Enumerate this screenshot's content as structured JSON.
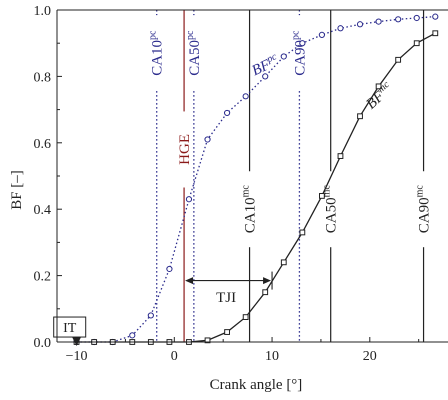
{
  "chart_data": {
    "type": "line",
    "xlabel": "Crank angle [°]",
    "ylabel": "BF [–]",
    "xlim": [
      -12,
      28
    ],
    "ylim": [
      0,
      1
    ],
    "xticks": [
      -10,
      0,
      10,
      20
    ],
    "yticks": [
      0.0,
      0.2,
      0.4,
      0.6,
      0.8,
      1.0
    ],
    "xtick_labels": [
      "−10",
      "0",
      "10",
      "20"
    ],
    "ytick_labels": [
      "0.0",
      "0.2",
      "0.4",
      "0.6",
      "0.8",
      "1.0"
    ],
    "grid": false,
    "series": [
      {
        "name": "BF",
        "name_superscript": "pc",
        "color": "#2a2a8c",
        "line_style": "dotted",
        "marker": "circle",
        "x": [
          -10,
          -8.2,
          -6.3,
          -4.3,
          -2.4,
          -0.5,
          1.5,
          3.4,
          5.4,
          7.3,
          9.3,
          11.2,
          13.1,
          15.1,
          17.0,
          19.0,
          20.9,
          22.9,
          24.8,
          26.7
        ],
        "y": [
          0.0,
          0.0,
          0.0,
          0.02,
          0.08,
          0.22,
          0.43,
          0.61,
          0.69,
          0.74,
          0.8,
          0.86,
          0.9,
          0.925,
          0.945,
          0.957,
          0.965,
          0.972,
          0.976,
          0.98
        ]
      },
      {
        "name": "BF",
        "name_superscript": "mc",
        "color": "#222222",
        "line_style": "solid",
        "marker": "square",
        "x": [
          -10,
          -8.2,
          -6.3,
          -4.3,
          -2.4,
          -0.5,
          1.5,
          3.4,
          5.4,
          7.3,
          9.3,
          11.2,
          13.1,
          15.1,
          17.0,
          19.0,
          20.9,
          22.9,
          24.8,
          26.7
        ],
        "y": [
          0.0,
          0.0,
          0.0,
          0.0,
          0.0,
          0.0,
          0.0,
          0.005,
          0.03,
          0.075,
          0.15,
          0.24,
          0.33,
          0.44,
          0.56,
          0.68,
          0.77,
          0.85,
          0.9,
          0.93
        ]
      }
    ],
    "vlines": [
      {
        "x": -1.8,
        "label": "CA10",
        "superscript": "pc",
        "color": "#2a2a8c",
        "style": "dotted",
        "label_y": 0.87
      },
      {
        "x": 2.0,
        "label": "CA50",
        "superscript": "pc",
        "color": "#2a2a8c",
        "style": "dotted",
        "label_y": 0.87
      },
      {
        "x": 12.8,
        "label": "CA90",
        "superscript": "pc",
        "color": "#2a2a8c",
        "style": "dotted",
        "label_y": 0.87
      },
      {
        "x": 1.0,
        "label": "HGE",
        "superscript": "",
        "color": "#8b1a1a",
        "style": "solid",
        "label_y": 0.58
      },
      {
        "x": 7.7,
        "label": "CA10",
        "superscript": "mc",
        "color": "#222222",
        "style": "solid",
        "label_y": 0.4
      },
      {
        "x": 16.0,
        "label": "CA50",
        "superscript": "mc",
        "color": "#222222",
        "style": "solid",
        "label_y": 0.4
      },
      {
        "x": 25.5,
        "label": "CA90",
        "superscript": "mc",
        "color": "#222222",
        "style": "solid",
        "label_y": 0.4
      }
    ],
    "annotations": [
      {
        "text": "BF",
        "superscript": "pc",
        "x": 9.5,
        "y": 0.82,
        "color": "#2a2a8c",
        "rotation": -25
      },
      {
        "text": "BF",
        "superscript": "mc",
        "x": 21.3,
        "y": 0.73,
        "color": "#222222",
        "rotation": -42
      },
      {
        "text": "TJI",
        "x": 5.3,
        "y": 0.12,
        "color": "#222222",
        "arrow_from": 1.0,
        "arrow_to": 10.0,
        "arrow_y": 0.185
      },
      {
        "text": "IT",
        "x": -10.7,
        "y": 0.03,
        "color": "#222222",
        "boxed": true,
        "arrow_x": -10.0
      }
    ]
  }
}
